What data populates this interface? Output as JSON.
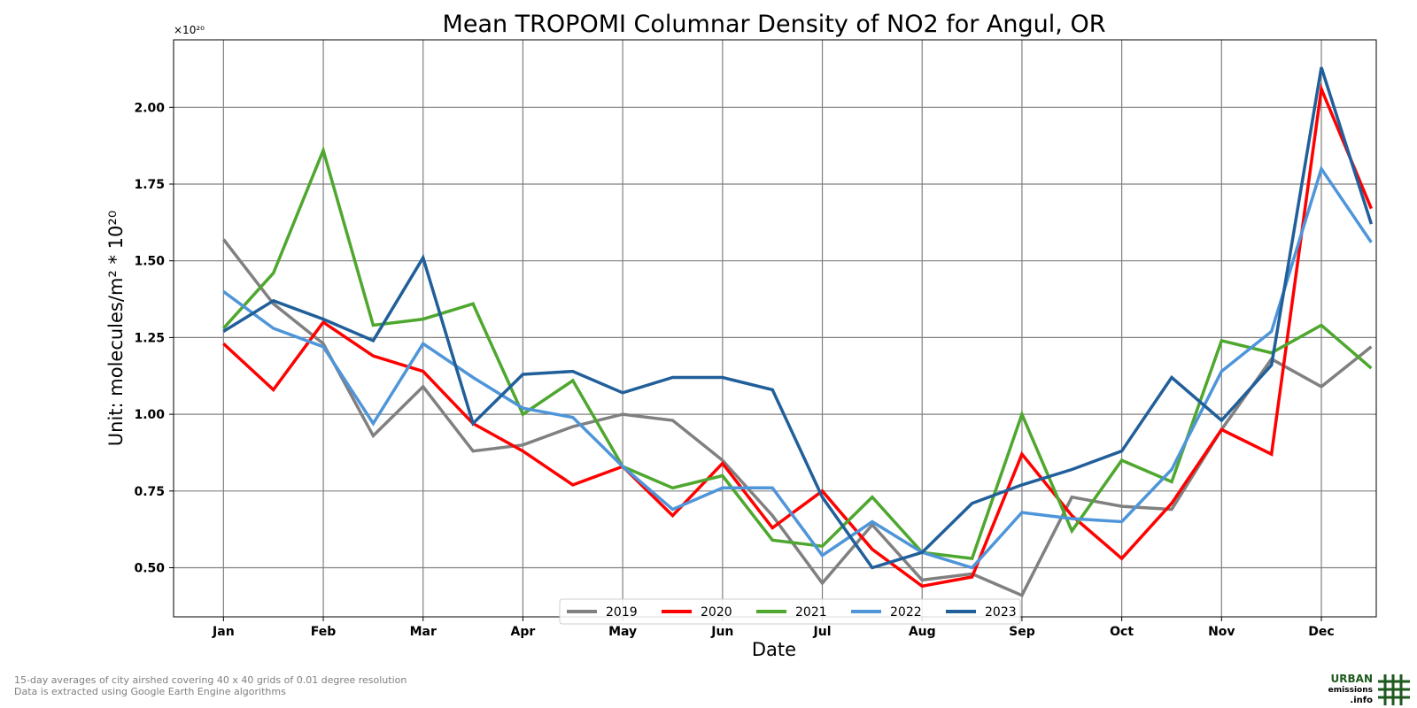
{
  "chart_data": {
    "type": "line",
    "title": "Mean TROPOMI Columnar Density of NO2 for Angul, OR",
    "xlabel": "Date",
    "ylabel": "Unit: molecules/m² * 10²⁰",
    "y_multiplier": "×10²⁰",
    "ylim": [
      0.34,
      2.22
    ],
    "yticks": [
      0.5,
      0.75,
      1.0,
      1.25,
      1.5,
      1.75,
      2.0
    ],
    "ytick_labels": [
      "0.50",
      "0.75",
      "1.00",
      "1.25",
      "1.50",
      "1.75",
      "2.00"
    ],
    "xlim": [
      0.0,
      24.1
    ],
    "xticks": [
      1,
      3,
      5,
      7,
      9,
      11,
      13,
      15,
      17,
      19,
      21,
      23
    ],
    "xtick_labels": [
      "Jan",
      "Feb",
      "Mar",
      "Apr",
      "May",
      "Jun",
      "Jul",
      "Aug",
      "Sep",
      "Oct",
      "Nov",
      "Dec"
    ],
    "x": [
      1,
      2,
      3,
      4,
      5,
      6,
      7,
      8,
      9,
      10,
      11,
      12,
      13,
      14,
      15,
      16,
      17,
      18,
      19,
      20,
      21,
      22,
      23,
      24
    ],
    "grid": true,
    "legend_position": "bottom-center",
    "series": [
      {
        "name": "2019",
        "color": "#808080",
        "values": [
          1.57,
          1.36,
          1.23,
          0.93,
          1.09,
          0.88,
          0.9,
          0.96,
          1.0,
          0.98,
          0.85,
          0.67,
          0.45,
          0.64,
          0.46,
          0.48,
          0.41,
          0.73,
          0.7,
          0.69,
          0.95,
          1.18,
          1.09,
          1.22
        ]
      },
      {
        "name": "2020",
        "color": "#ff0000",
        "values": [
          1.23,
          1.08,
          1.3,
          1.19,
          1.14,
          0.97,
          0.88,
          0.77,
          0.83,
          0.67,
          0.84,
          0.63,
          0.75,
          0.56,
          0.44,
          0.47,
          0.87,
          0.67,
          0.53,
          0.71,
          0.95,
          0.87,
          2.06,
          1.67
        ]
      },
      {
        "name": "2021",
        "color": "#4ea72e",
        "values": [
          1.28,
          1.46,
          1.86,
          1.29,
          1.31,
          1.36,
          1.0,
          1.11,
          0.83,
          0.76,
          0.8,
          0.59,
          0.57,
          0.73,
          0.55,
          0.53,
          1.0,
          0.62,
          0.85,
          0.78,
          1.24,
          1.2,
          1.29,
          1.15
        ]
      },
      {
        "name": "2022",
        "color": "#4e95d9",
        "values": [
          1.4,
          1.28,
          1.22,
          0.97,
          1.23,
          1.12,
          1.02,
          0.99,
          0.83,
          0.69,
          0.76,
          0.76,
          0.54,
          0.65,
          0.55,
          0.5,
          0.68,
          0.66,
          0.65,
          0.82,
          1.14,
          1.27,
          1.8,
          1.56
        ]
      },
      {
        "name": "2023",
        "color": "#215f9a",
        "values": [
          1.27,
          1.37,
          1.31,
          1.24,
          1.51,
          0.97,
          1.13,
          1.14,
          1.07,
          1.12,
          1.12,
          1.08,
          0.73,
          0.5,
          0.55,
          0.71,
          0.77,
          0.82,
          0.88,
          1.12,
          0.98,
          1.16,
          2.13,
          1.62
        ]
      }
    ]
  },
  "footnote": {
    "line1": "15-day averages of city airshed covering 40 x 40 grids of 0.01 degree resolution",
    "line2": "Data is extracted using Google Earth Engine algorithms"
  },
  "logo": {
    "line1": "URBAN",
    "line2": "emissions",
    "line3": ".info",
    "color": "#1e5a1e"
  }
}
